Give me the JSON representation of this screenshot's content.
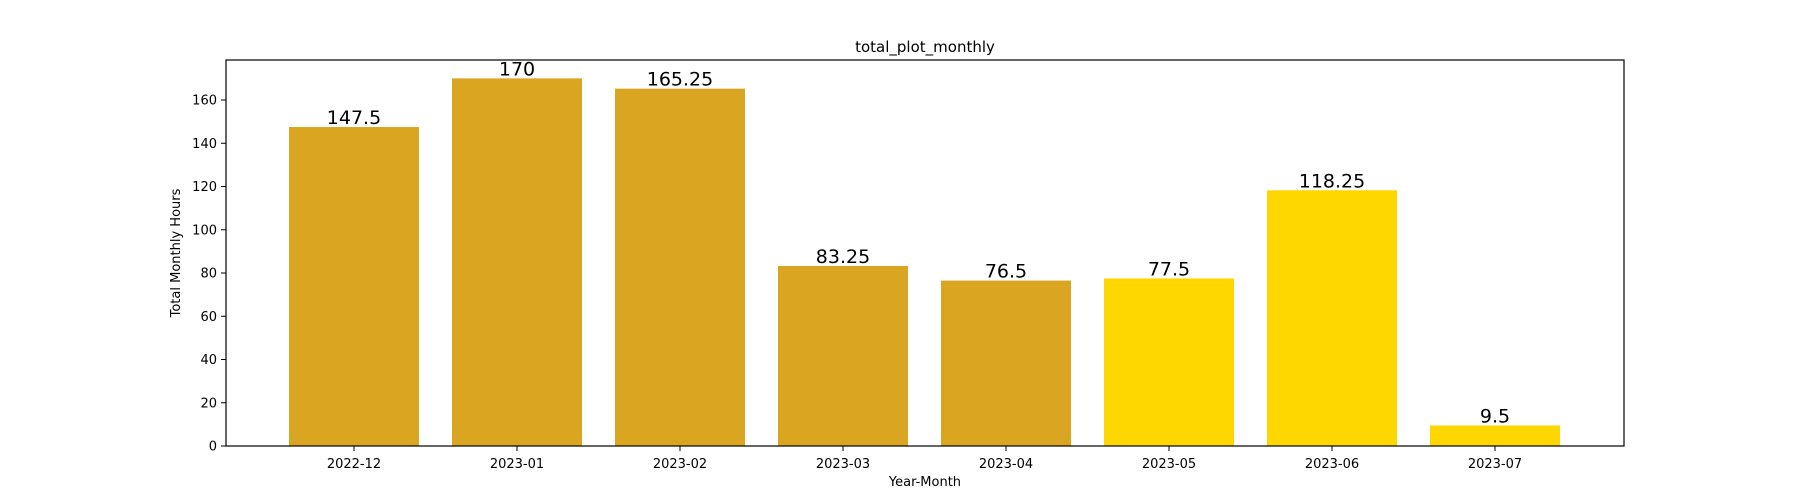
{
  "chart_data": {
    "type": "bar",
    "title": "total_plot_monthly",
    "xlabel": "Year-Month",
    "ylabel": "Total Monthly Hours",
    "categories": [
      "2022-12",
      "2023-01",
      "2023-02",
      "2023-03",
      "2023-04",
      "2023-05",
      "2023-06",
      "2023-07"
    ],
    "values": [
      147.5,
      170,
      165.25,
      83.25,
      76.5,
      77.5,
      118.25,
      9.5
    ],
    "value_labels": [
      "147.5",
      "170",
      "165.25",
      "83.25",
      "76.5",
      "77.5",
      "118.25",
      "9.5"
    ],
    "bar_colors": [
      "#daa520",
      "#daa520",
      "#daa520",
      "#daa520",
      "#daa520",
      "#ffd700",
      "#ffd700",
      "#ffd700"
    ],
    "ylim": [
      0,
      178.5
    ],
    "yticks": [
      0,
      20,
      40,
      60,
      80,
      100,
      120,
      140,
      160
    ],
    "grid": false,
    "legend": false
  }
}
